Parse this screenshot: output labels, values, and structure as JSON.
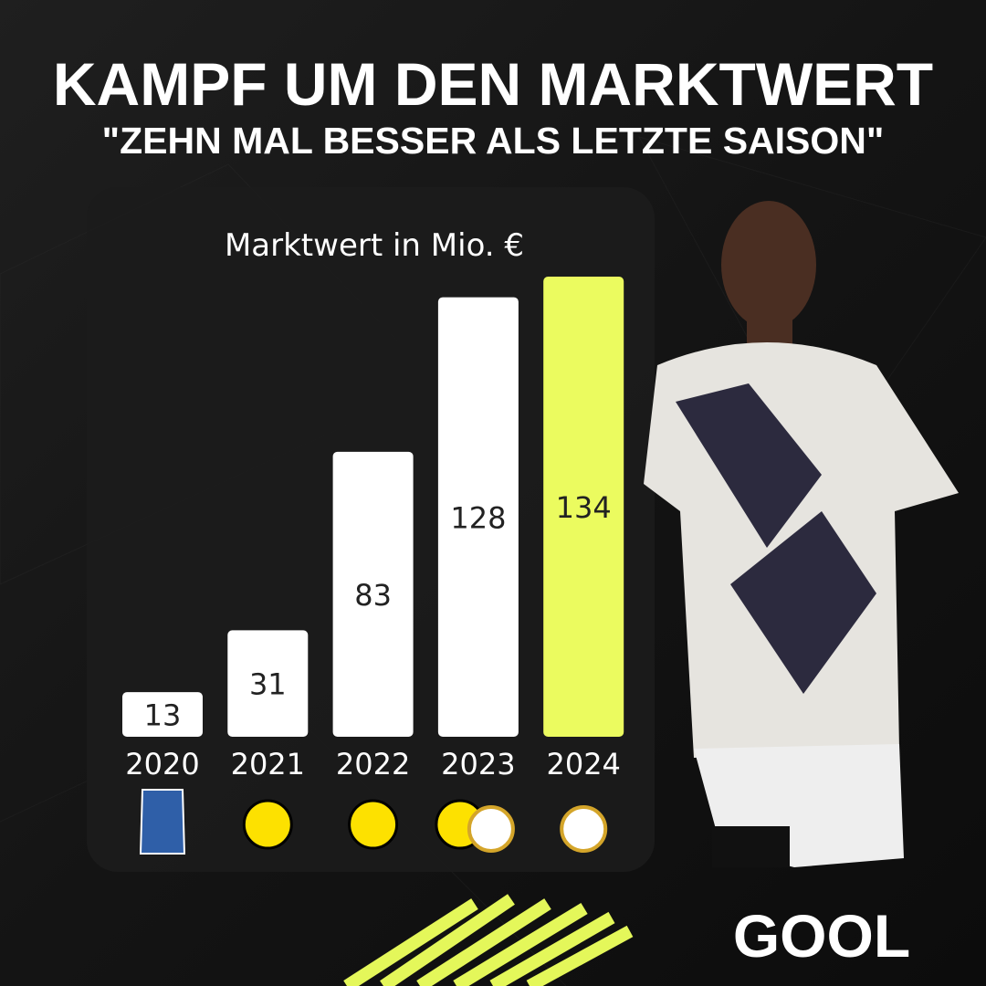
{
  "chart_data": {
    "type": "bar",
    "title": "KAMPF UM DEN MARKTWERT",
    "subtitle": "\"ZEHN MAL BESSER ALS LETZTE SAISON\"",
    "y_label": "Marktwert in Mio. €",
    "categories": [
      "2020",
      "2021",
      "2022",
      "2023",
      "2024"
    ],
    "values": [
      13,
      31,
      83,
      128,
      134
    ],
    "colors": [
      "#ffffff",
      "#ffffff",
      "#ffffff",
      "#ffffff",
      "#ebfb5f"
    ]
  },
  "brand": "GOOL"
}
